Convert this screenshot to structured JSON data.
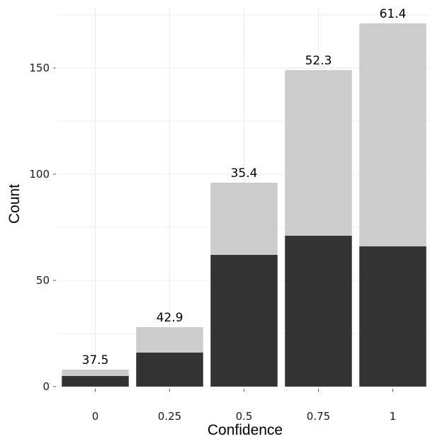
{
  "chart_data": {
    "type": "bar",
    "stacked": true,
    "categories": [
      "0",
      "0.25",
      "0.5",
      "0.75",
      "1"
    ],
    "series": [
      {
        "values": [
          5,
          16,
          62,
          71,
          66
        ],
        "color": "#333333"
      },
      {
        "values": [
          3,
          12,
          34,
          78,
          105
        ],
        "color": "#cccccc"
      }
    ],
    "totals": [
      8,
      28,
      96,
      149,
      171
    ],
    "bar_labels": [
      "37.5",
      "42.9",
      "35.4",
      "52.3",
      "61.4"
    ],
    "xlabel": "Confidence",
    "ylabel": "Count",
    "yticks": [
      0,
      50,
      100,
      150
    ],
    "ytick_labels": [
      "0",
      "50",
      "100",
      "150"
    ],
    "ylim": [
      0,
      175
    ],
    "grid": true,
    "legend": "none"
  }
}
